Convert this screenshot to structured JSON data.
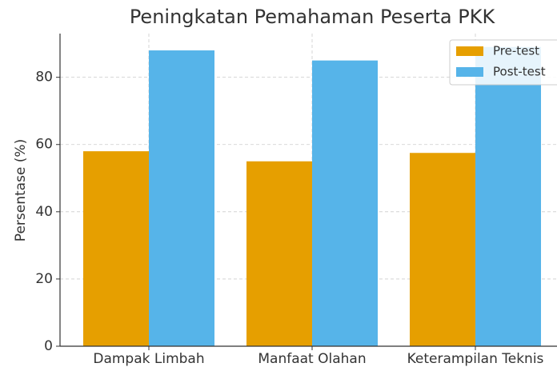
{
  "chart_data": {
    "type": "bar",
    "title": "Peningkatan Pemahaman Peserta PKK",
    "ylabel": "Persentase (%)",
    "categories": [
      "Dampak Limbah",
      "Manfaat Olahan",
      "Keterampilan Teknis"
    ],
    "series": [
      {
        "name": "Pre-test",
        "color": "#E69F00",
        "values": [
          58,
          55,
          57.5
        ]
      },
      {
        "name": "Post-test",
        "color": "#56B4E9",
        "values": [
          88,
          85,
          89
        ]
      }
    ],
    "ylim": [
      0,
      93
    ],
    "yticks": [
      0,
      20,
      40,
      60,
      80
    ],
    "grid": true,
    "legend": "upper right"
  }
}
